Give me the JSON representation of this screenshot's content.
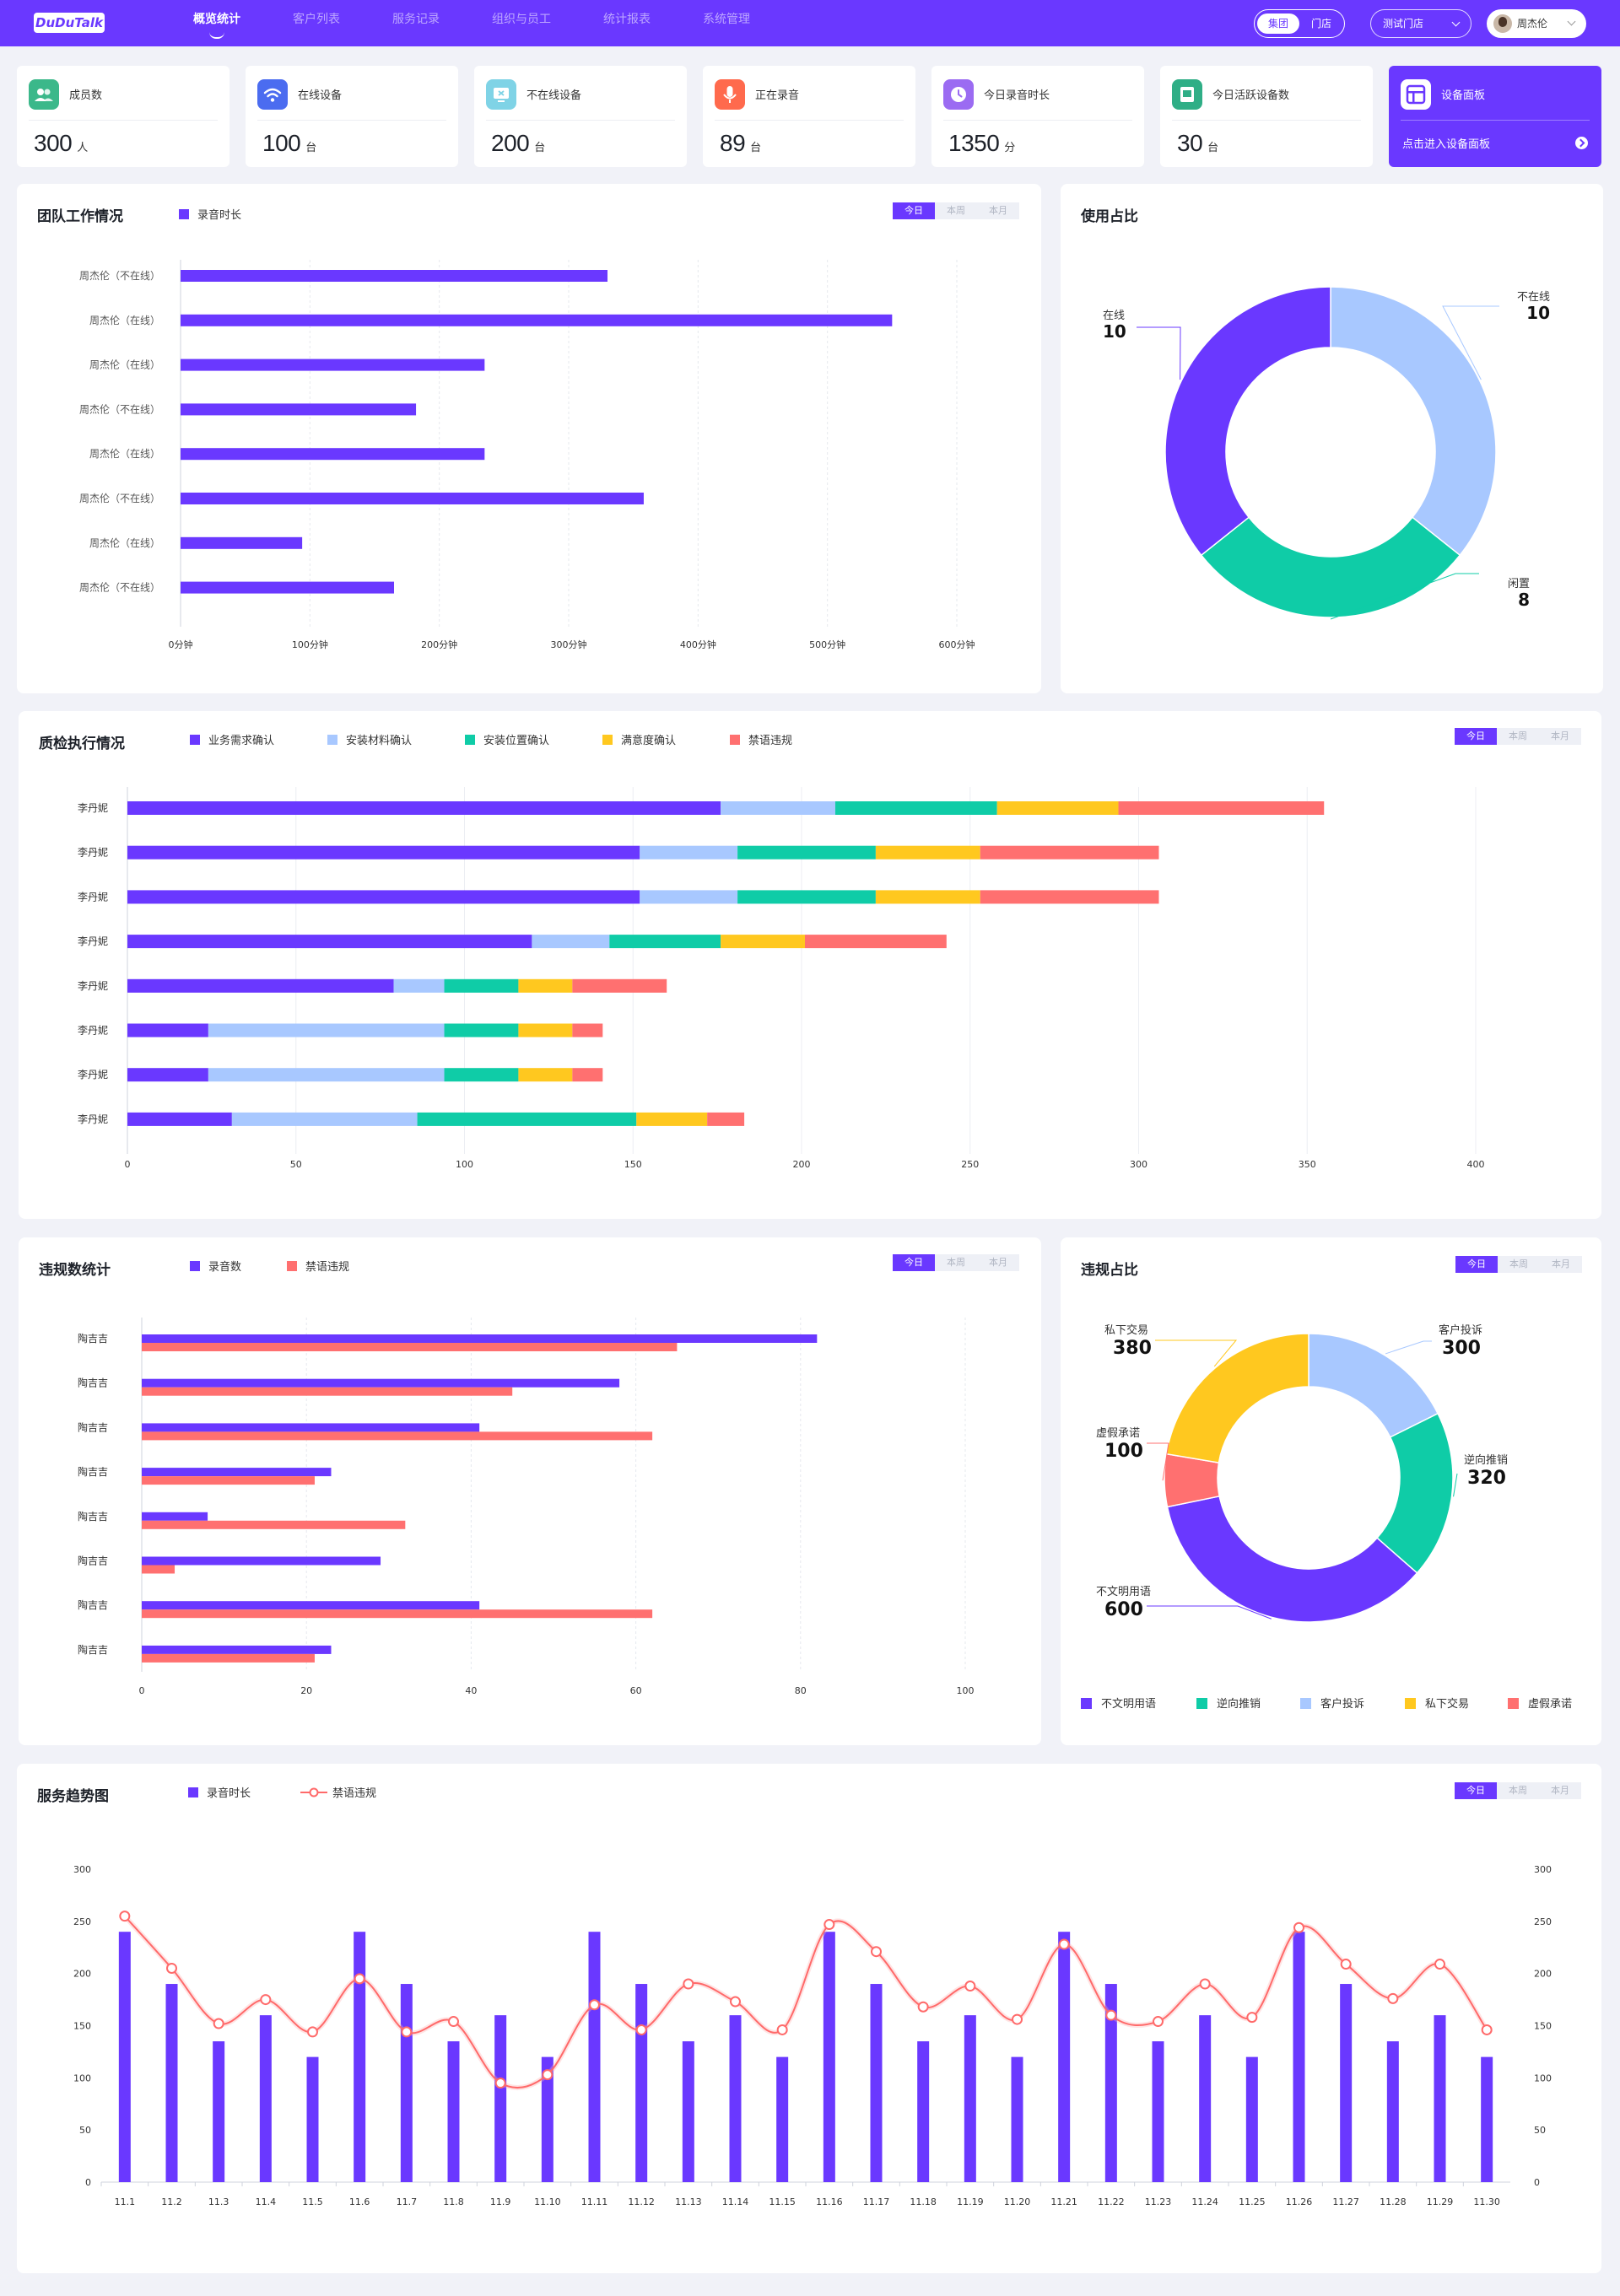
{
  "app": {
    "logo": "DuDuTalk"
  },
  "nav": [
    {
      "label": "概览统计",
      "active": true
    },
    {
      "label": "客户列表"
    },
    {
      "label": "服务记录"
    },
    {
      "label": "组织与员工"
    },
    {
      "label": "统计报表"
    },
    {
      "label": "系统管理"
    }
  ],
  "header": {
    "scope_group": "集团",
    "scope_store": "门店",
    "store_select": "测试门店",
    "user_name": "周杰伦"
  },
  "stats": [
    {
      "label": "成员数",
      "value": "300",
      "unit": "人",
      "icon": "users-icon",
      "color": "#3bb88a"
    },
    {
      "label": "在线设备",
      "value": "100",
      "unit": "台",
      "icon": "wifi-icon",
      "color": "#4b6cf0"
    },
    {
      "label": "不在线设备",
      "value": "200",
      "unit": "台",
      "icon": "offline-device-icon",
      "color": "#7fd3e6"
    },
    {
      "label": "正在录音",
      "value": "89",
      "unit": "台",
      "icon": "microphone-icon",
      "color": "#ff6a4d"
    },
    {
      "label": "今日录音时长",
      "value": "1350",
      "unit": "分",
      "icon": "clock-icon",
      "color": "#9b6bf2"
    },
    {
      "label": "今日活跃设备数",
      "value": "30",
      "unit": "台",
      "icon": "device-icon",
      "color": "#2fae86"
    }
  ],
  "device_panel": {
    "label": "设备面板",
    "enter": "点击进入设备面板",
    "icon": "dashboard-icon"
  },
  "period_tabs": [
    "今日",
    "本周",
    "本月"
  ],
  "colors": {
    "primary": "#6a38ff",
    "light_blue": "#a8c8ff",
    "green": "#0fcca7",
    "yellow": "#ffc81f",
    "red": "#ff7070"
  },
  "chart_data": [
    {
      "id": "team",
      "type": "bar",
      "title": "团队工作情况",
      "series": [
        {
          "name": "录音时长",
          "values": [
            330,
            550,
            235,
            182,
            235,
            358,
            94,
            165
          ]
        }
      ],
      "categories": [
        "周杰伦（不在线）",
        "周杰伦（在线）",
        "周杰伦（在线）",
        "周杰伦（不在线）",
        "周杰伦（在线）",
        "周杰伦（不在线）",
        "周杰伦（在线）",
        "周杰伦（不在线）"
      ],
      "x_ticks": [
        "0分钟",
        "100分钟",
        "200分钟",
        "300分钟",
        "400分钟",
        "500分钟",
        "600分钟"
      ],
      "xlim": [
        0,
        600
      ],
      "orientation": "horizontal"
    },
    {
      "id": "usage",
      "type": "pie",
      "title": "使用占比",
      "slices": [
        {
          "label": "不在线",
          "value": 10,
          "color": "#a8c8ff"
        },
        {
          "label": "闲置",
          "value": 8,
          "color": "#0fcca7"
        },
        {
          "label": "在线",
          "value": 10,
          "color": "#6a38ff"
        }
      ]
    },
    {
      "id": "qc",
      "type": "bar",
      "stacked": true,
      "title": "质检执行情况",
      "categories": [
        "李丹妮",
        "李丹妮",
        "李丹妮",
        "李丹妮",
        "李丹妮",
        "李丹妮",
        "李丹妮",
        "李丹妮"
      ],
      "series": [
        {
          "name": "业务需求确认",
          "values": [
            176,
            152,
            152,
            120,
            79,
            24,
            24,
            31
          ],
          "color": "#6a38ff"
        },
        {
          "name": "安装材料确认",
          "values": [
            34,
            29,
            29,
            23,
            15,
            70,
            70,
            55
          ],
          "color": "#a8c8ff"
        },
        {
          "name": "安装位置确认",
          "values": [
            48,
            41,
            41,
            33,
            22,
            22,
            22,
            65
          ],
          "color": "#0fcca7"
        },
        {
          "name": "满意度确认",
          "values": [
            36,
            31,
            31,
            25,
            16,
            16,
            16,
            21
          ],
          "color": "#ffc81f"
        },
        {
          "name": "禁语违规",
          "values": [
            61,
            53,
            53,
            42,
            28,
            9,
            9,
            11
          ],
          "color": "#ff7070"
        }
      ],
      "x_ticks": [
        "0",
        "50",
        "100",
        "150",
        "200",
        "250",
        "300",
        "350",
        "400"
      ],
      "xlim": [
        0,
        400
      ],
      "orientation": "horizontal"
    },
    {
      "id": "violations",
      "type": "bar",
      "title": "违规数统计",
      "categories": [
        "陶吉吉",
        "陶吉吉",
        "陶吉吉",
        "陶吉吉",
        "陶吉吉",
        "陶吉吉",
        "陶吉吉",
        "陶吉吉"
      ],
      "series": [
        {
          "name": "录音数",
          "values": [
            82,
            58,
            41,
            23,
            8,
            29,
            41,
            23
          ],
          "color": "#6a38ff"
        },
        {
          "name": "禁语违规",
          "values": [
            65,
            45,
            62,
            21,
            32,
            4,
            62,
            21
          ],
          "color": "#ff7070"
        }
      ],
      "x_ticks": [
        "0",
        "20",
        "40",
        "60",
        "80",
        "100"
      ],
      "xlim": [
        0,
        100
      ],
      "orientation": "horizontal"
    },
    {
      "id": "violation_share",
      "type": "pie",
      "title": "违规占比",
      "slices": [
        {
          "label": "客户投诉",
          "value": 300,
          "color": "#a8c8ff"
        },
        {
          "label": "逆向推销",
          "value": 320,
          "color": "#0fcca7"
        },
        {
          "label": "不文明用语",
          "value": 600,
          "color": "#6a38ff"
        },
        {
          "label": "虚假承诺",
          "value": 100,
          "color": "#ff7070"
        },
        {
          "label": "私下交易",
          "value": 380,
          "color": "#ffc81f"
        }
      ],
      "legend": [
        {
          "label": "不文明用语",
          "color": "#6a38ff"
        },
        {
          "label": "逆向推销",
          "color": "#0fcca7"
        },
        {
          "label": "客户投诉",
          "color": "#a8c8ff"
        },
        {
          "label": "私下交易",
          "color": "#ffc81f"
        },
        {
          "label": "虚假承诺",
          "color": "#ff7070"
        }
      ]
    },
    {
      "id": "trend",
      "type": "bar",
      "title": "服务趋势图",
      "categories": [
        "11.1",
        "11.2",
        "11.3",
        "11.4",
        "11.5",
        "11.6",
        "11.7",
        "11.8",
        "11.9",
        "11.10",
        "11.11",
        "11.12",
        "11.13",
        "11.14",
        "11.15",
        "11.16",
        "11.17",
        "11.18",
        "11.19",
        "11.20",
        "11.21",
        "11.22",
        "11.23",
        "11.24",
        "11.25",
        "11.26",
        "11.27",
        "11.28",
        "11.29",
        "11.30"
      ],
      "series": [
        {
          "name": "录音时长",
          "type": "bar",
          "values": [
            240,
            190,
            135,
            160,
            120,
            240,
            190,
            135,
            160,
            120,
            240,
            190,
            135,
            160,
            120,
            240,
            190,
            135,
            160,
            120,
            240,
            190,
            135,
            160,
            120,
            240,
            190,
            135,
            160,
            120
          ],
          "color": "#6a38ff"
        },
        {
          "name": "禁语违规",
          "type": "line",
          "values": [
            255,
            205,
            152,
            175,
            144,
            195,
            144,
            154,
            95,
            103,
            170,
            146,
            190,
            173,
            146,
            247,
            221,
            168,
            188,
            156,
            228,
            160,
            154,
            190,
            158,
            244,
            209,
            176,
            209,
            146
          ],
          "color": "#ff6a6a"
        }
      ],
      "y_ticks": [
        "0",
        "50",
        "100",
        "150",
        "200",
        "250",
        "300"
      ],
      "ylim": [
        0,
        300
      ]
    }
  ]
}
